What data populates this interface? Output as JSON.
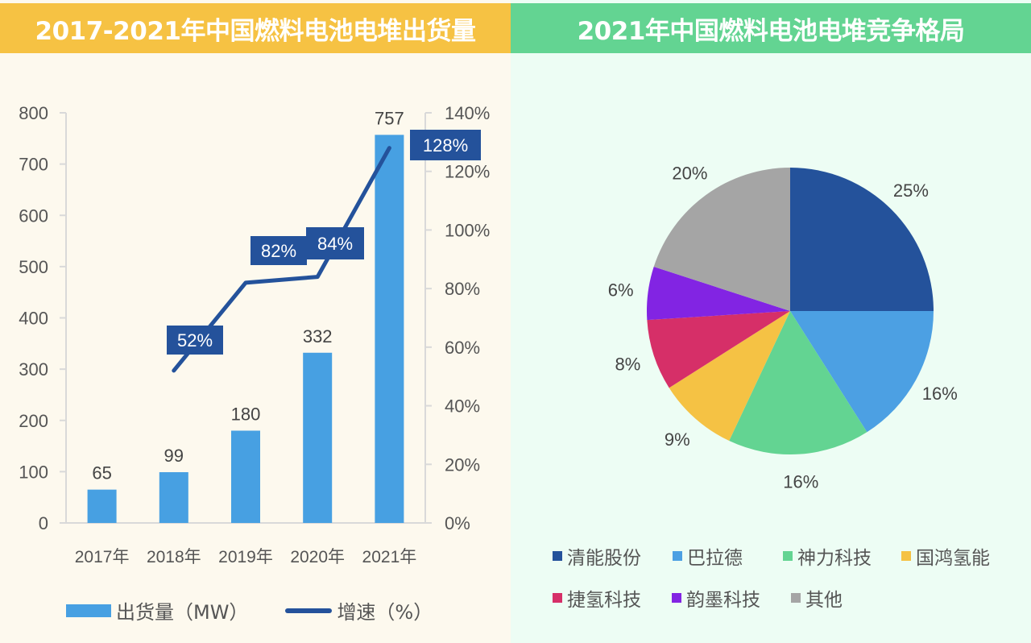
{
  "left_panel": {
    "title": "2017-2021年中国燃料电池电堆出货量"
  },
  "right_panel": {
    "title": "2021年中国燃料电池电堆竞争格局"
  },
  "chart_data": [
    {
      "type": "bar",
      "title": "2017-2021年中国燃料电池电堆出货量",
      "categories": [
        "2017年",
        "2018年",
        "2019年",
        "2020年",
        "2021年"
      ],
      "series": [
        {
          "name": "出货量（MW）",
          "kind": "bar",
          "axis": "left",
          "color": "#47a0e2",
          "values": [
            65,
            99,
            180,
            332,
            757
          ],
          "labels": [
            "65",
            "99",
            "180",
            "332",
            "757"
          ]
        },
        {
          "name": "增速（%）",
          "kind": "line",
          "axis": "right",
          "color": "#24529b",
          "values": [
            null,
            52,
            82,
            84,
            128
          ],
          "labels": [
            "",
            "52%",
            "82%",
            "84%",
            "128%"
          ]
        }
      ],
      "y_left": {
        "lim": [
          0,
          800
        ],
        "ticks": [
          "0",
          "100",
          "200",
          "300",
          "400",
          "500",
          "600",
          "700",
          "800"
        ]
      },
      "y_right": {
        "lim": [
          0,
          140
        ],
        "ticks": [
          "0%",
          "20%",
          "40%",
          "60%",
          "80%",
          "100%",
          "120%",
          "140%"
        ]
      },
      "legend": {
        "placement": "bottom",
        "items": [
          "出货量（MW）",
          "增速（%）"
        ]
      },
      "grid": false
    },
    {
      "type": "pie",
      "title": "2021年中国燃料电池电堆竞争格局",
      "slices": [
        {
          "label": "清能股份",
          "value": 25,
          "display": "25%",
          "color": "#24529b"
        },
        {
          "label": "巴拉德",
          "value": 16,
          "display": "16%",
          "color": "#4ca0e3"
        },
        {
          "label": "神力科技",
          "value": 16,
          "display": "16%",
          "color": "#63d492"
        },
        {
          "label": "国鸿氢能",
          "value": 9,
          "display": "9%",
          "color": "#f5c244"
        },
        {
          "label": "捷氢科技",
          "value": 8,
          "display": "8%",
          "color": "#d62f68"
        },
        {
          "label": "韵墨科技",
          "value": 6,
          "display": "6%",
          "color": "#8224e3"
        },
        {
          "label": "其他",
          "value": 20,
          "display": "20%",
          "color": "#a5a5a5"
        }
      ],
      "legend": {
        "placement": "bottom"
      }
    }
  ]
}
